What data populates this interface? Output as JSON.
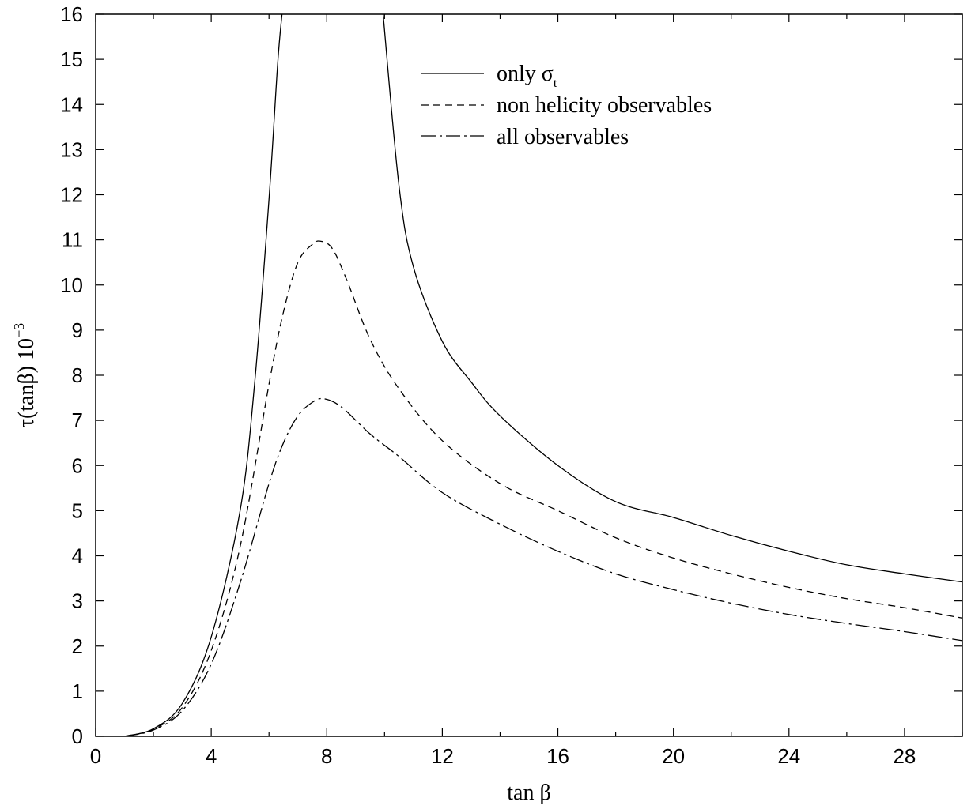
{
  "chart_data": {
    "type": "line",
    "title": "",
    "xlabel": "tan β",
    "ylabel": "τ(tanβ) 10",
    "ylabel_exponent": "−3",
    "xlim": [
      0,
      30
    ],
    "ylim": [
      0,
      16
    ],
    "xticks": [
      0,
      4,
      8,
      12,
      16,
      20,
      24,
      28
    ],
    "yticks": [
      0,
      1,
      2,
      3,
      4,
      5,
      6,
      7,
      8,
      9,
      10,
      11,
      12,
      13,
      14,
      15,
      16
    ],
    "grid": false,
    "legend_position": "top-right",
    "series": [
      {
        "name": "only σ",
        "name_subscript": "t",
        "style": "solid",
        "x": [
          1.0,
          2.0,
          3.0,
          4.0,
          5.0,
          5.5,
          6.0,
          6.3,
          6.45,
          9.95,
          10.5,
          11.0,
          12.0,
          13.0,
          14.0,
          16.0,
          18.0,
          20.0,
          22.0,
          24.0,
          26.0,
          28.0,
          30.0
        ],
        "y": [
          0.0,
          0.17,
          0.73,
          2.2,
          5.0,
          7.8,
          11.9,
          14.9,
          16.0,
          16.0,
          12.2,
          10.4,
          8.75,
          7.85,
          7.1,
          6.0,
          5.2,
          4.85,
          4.45,
          4.1,
          3.8,
          3.6,
          3.42
        ]
      },
      {
        "name": "non helicity observables",
        "style": "dashed",
        "x": [
          1.0,
          2.0,
          3.0,
          4.0,
          5.0,
          6.0,
          6.5,
          7.0,
          7.5,
          7.8,
          8.2,
          8.7,
          9.5,
          10.5,
          12.0,
          14.0,
          16.0,
          18.0,
          20.0,
          22.0,
          24.0,
          26.0,
          28.0,
          30.0
        ],
        "y": [
          0.0,
          0.16,
          0.64,
          1.9,
          4.2,
          7.8,
          9.4,
          10.5,
          10.9,
          10.97,
          10.8,
          10.1,
          8.8,
          7.7,
          6.55,
          5.6,
          5.0,
          4.4,
          3.95,
          3.6,
          3.3,
          3.05,
          2.85,
          2.62
        ]
      },
      {
        "name": "all observables",
        "style": "dashdot",
        "x": [
          1.0,
          2.0,
          3.0,
          4.0,
          5.0,
          6.0,
          6.5,
          7.0,
          7.5,
          7.9,
          8.5,
          9.5,
          10.5,
          12.0,
          14.0,
          16.0,
          18.0,
          20.0,
          22.0,
          24.0,
          26.0,
          28.0,
          30.0
        ],
        "y": [
          0.0,
          0.14,
          0.57,
          1.6,
          3.4,
          5.6,
          6.5,
          7.1,
          7.4,
          7.48,
          7.3,
          6.7,
          6.2,
          5.4,
          4.7,
          4.1,
          3.6,
          3.25,
          2.95,
          2.7,
          2.5,
          2.32,
          2.12
        ]
      }
    ]
  }
}
